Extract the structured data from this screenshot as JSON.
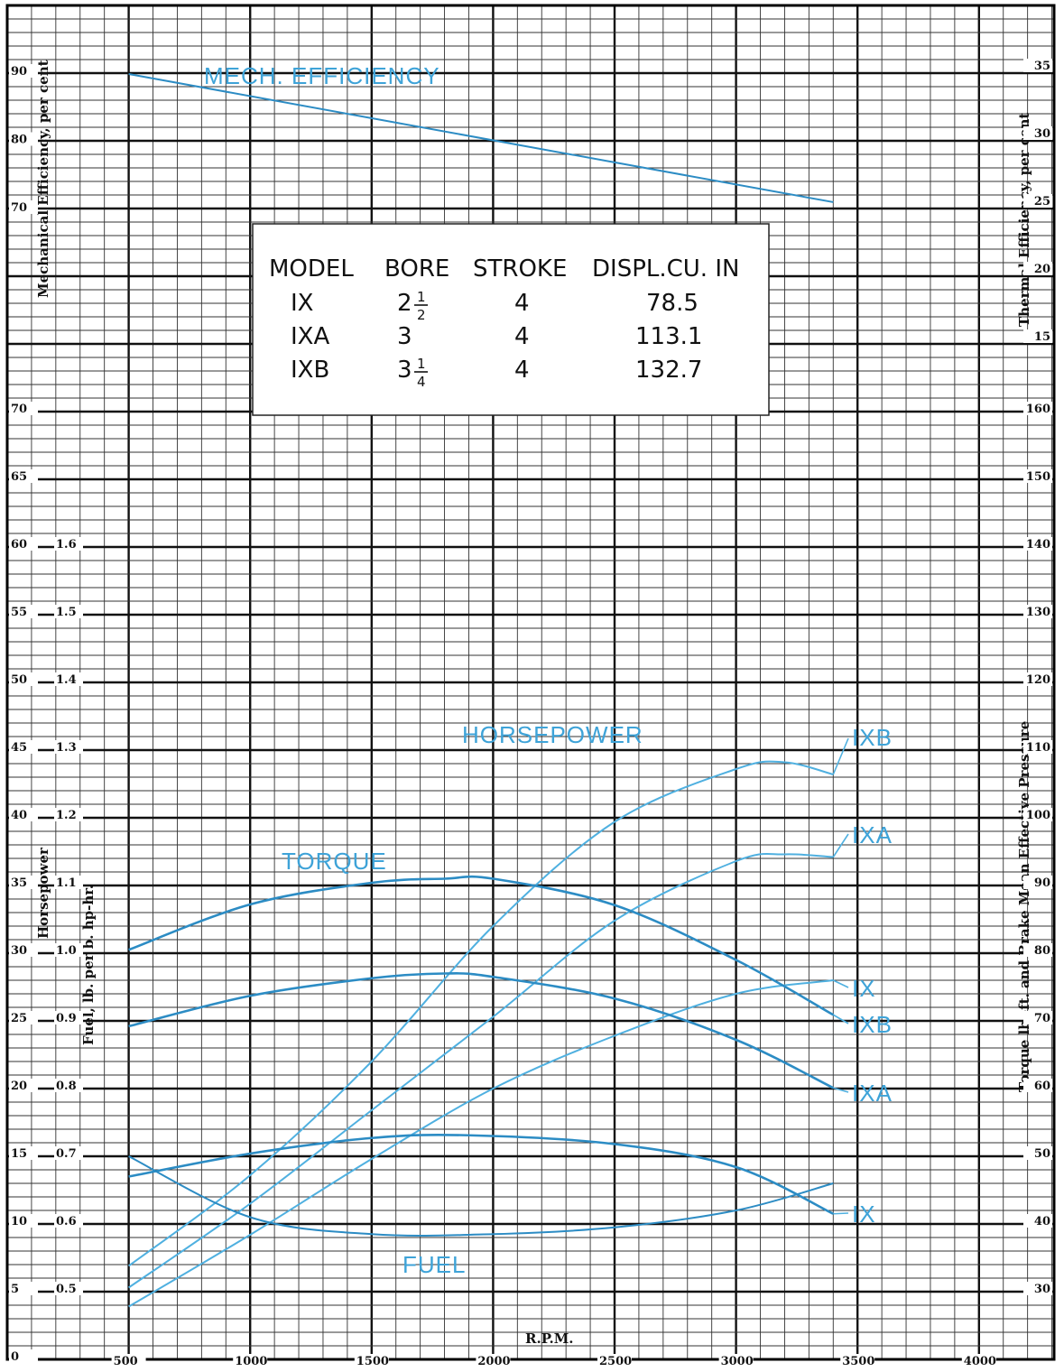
{
  "chart_data": {
    "type": "line",
    "x_axis": {
      "label": "R.P.M.",
      "ticks": [
        "500",
        "1000",
        "1500",
        "2000",
        "2500",
        "3000",
        "3500",
        "4000"
      ],
      "range": [
        0,
        4300
      ]
    },
    "axes": {
      "mechanical_efficiency": {
        "label": "Mechanical Efficiency, per cent",
        "ticks": [
          "70",
          "80",
          "90"
        ]
      },
      "horsepower": {
        "label": "Horsepower",
        "ticks": [
          "0",
          "5",
          "10",
          "15",
          "20",
          "25",
          "30",
          "35",
          "40",
          "45",
          "50",
          "55",
          "60",
          "65",
          "70"
        ]
      },
      "fuel": {
        "label": "Fuel, lb. per b. hp-hr.",
        "ticks": [
          "0.5",
          "0.6",
          "0.7",
          "0.8",
          "0.9",
          "1.0",
          "1.1",
          "1.2",
          "1.3",
          "1.4",
          "1.5",
          "1.6"
        ]
      },
      "thermal_efficiency": {
        "label": "Thermal Efficiency, per cent",
        "ticks": [
          "15",
          "20",
          "25",
          "30",
          "35"
        ]
      },
      "torque_bmep": {
        "label": "Torque lb.-ft. and Brake Mean Effective Pressure",
        "ticks": [
          "30",
          "40",
          "50",
          "60",
          "70",
          "80",
          "90",
          "100",
          "110",
          "120",
          "130",
          "140",
          "150",
          "160"
        ]
      }
    },
    "annotations": {
      "mech_efficiency": "MECH. EFFICIENCY",
      "horsepower": "HORSEPOWER",
      "torque": "TORQUE",
      "fuel": "FUEL"
    },
    "table": {
      "headers": [
        "MODEL",
        "BORE",
        "STROKE",
        "DISPL.CU. IN"
      ],
      "rows": [
        {
          "model": "IX",
          "bore_whole": "2",
          "bore_num": "1",
          "bore_den": "2",
          "stroke": "4",
          "displ": "78.5"
        },
        {
          "model": "IXA",
          "bore_whole": "3",
          "bore_num": "",
          "bore_den": "",
          "stroke": "4",
          "displ": "113.1"
        },
        {
          "model": "IXB",
          "bore_whole": "3",
          "bore_num": "1",
          "bore_den": "4",
          "stroke": "4",
          "displ": "132.7"
        }
      ]
    },
    "series": [
      {
        "group": "mech_efficiency",
        "name": "",
        "axis": "mechanical_efficiency",
        "x": [
          500,
          3400
        ],
        "y": [
          90,
          71.2
        ]
      },
      {
        "group": "horsepower",
        "name": "IXB",
        "axis": "horsepower",
        "x": [
          500,
          1000,
          1500,
          2000,
          2500,
          3000,
          3200,
          3400
        ],
        "y": [
          6.9,
          13.6,
          22.0,
          32.0,
          39.7,
          43.6,
          44.1,
          43.2
        ]
      },
      {
        "group": "horsepower",
        "name": "IXA",
        "axis": "horsepower",
        "x": [
          500,
          1000,
          1500,
          2000,
          2500,
          3000,
          3200,
          3400
        ],
        "y": [
          5.3,
          11.5,
          18.4,
          25.3,
          32.4,
          36.8,
          37.3,
          37.1
        ]
      },
      {
        "group": "horsepower",
        "name": "IX",
        "axis": "horsepower",
        "x": [
          500,
          1000,
          1500,
          2000,
          2500,
          3000,
          3400
        ],
        "y": [
          3.9,
          9.2,
          14.8,
          20.0,
          23.9,
          27.0,
          28.0
        ]
      },
      {
        "group": "torque",
        "name": "IXB",
        "axis": "torque_bmep",
        "x": [
          500,
          1000,
          1500,
          1800,
          2000,
          2500,
          3000,
          3400
        ],
        "y": [
          80.5,
          87.2,
          90.4,
          91.0,
          91.0,
          87.1,
          79.0,
          70.9
        ]
      },
      {
        "group": "torque",
        "name": "IXA",
        "axis": "torque_bmep",
        "x": [
          500,
          1000,
          1500,
          1800,
          2000,
          2500,
          3000,
          3400
        ],
        "y": [
          69.2,
          73.7,
          76.3,
          77.0,
          76.5,
          73.3,
          67.2,
          60.1
        ]
      },
      {
        "group": "torque",
        "name": "IX",
        "axis": "torque_bmep",
        "x": [
          500,
          1000,
          1500,
          1900,
          2500,
          3000,
          3400
        ],
        "y": [
          47.0,
          50.4,
          52.7,
          53.1,
          51.8,
          48.4,
          41.5
        ]
      },
      {
        "group": "fuel",
        "name": "",
        "axis": "fuel",
        "x": [
          500,
          1000,
          1500,
          2000,
          2500,
          3000,
          3400
        ],
        "y": [
          0.7,
          0.61,
          0.585,
          0.585,
          0.595,
          0.62,
          0.66
        ]
      }
    ]
  }
}
